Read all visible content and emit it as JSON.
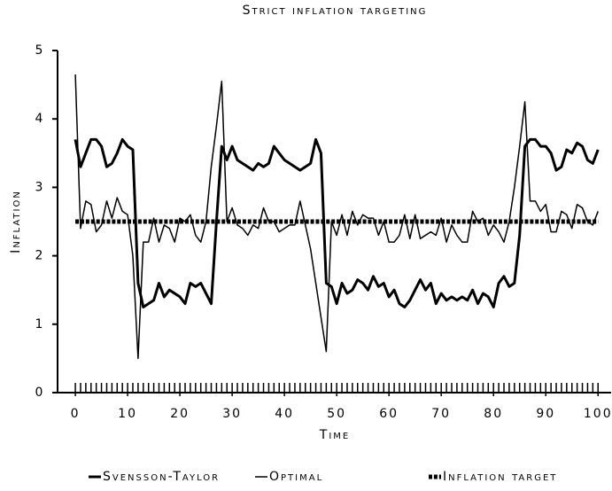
{
  "chart_data": {
    "type": "line",
    "title": "Strict inflation targeting",
    "x_label": "Time",
    "y_label": "Inflation",
    "x": [
      0,
      1,
      2,
      3,
      4,
      5,
      6,
      7,
      8,
      9,
      10,
      11,
      12,
      13,
      14,
      15,
      16,
      17,
      18,
      19,
      20,
      21,
      22,
      23,
      24,
      25,
      26,
      27,
      28,
      29,
      30,
      31,
      32,
      33,
      34,
      35,
      36,
      37,
      38,
      39,
      40,
      41,
      42,
      43,
      44,
      45,
      46,
      47,
      48,
      49,
      50,
      51,
      52,
      53,
      54,
      55,
      56,
      57,
      58,
      59,
      60,
      61,
      62,
      63,
      64,
      65,
      66,
      67,
      68,
      69,
      70,
      71,
      72,
      73,
      74,
      75,
      76,
      77,
      78,
      79,
      80,
      81,
      82,
      83,
      84,
      85,
      86,
      87,
      88,
      89,
      90,
      91,
      92,
      93,
      94,
      95,
      96,
      97,
      98,
      99,
      100
    ],
    "series": [
      {
        "name": "Svensson-Taylor",
        "color": "#000000",
        "style": "thick",
        "values": [
          3.7,
          3.3,
          3.5,
          3.7,
          3.7,
          3.6,
          3.3,
          3.35,
          3.5,
          3.7,
          3.6,
          3.55,
          1.6,
          1.25,
          1.3,
          1.35,
          1.6,
          1.4,
          1.5,
          1.45,
          1.4,
          1.3,
          1.6,
          1.55,
          1.6,
          1.45,
          1.3,
          2.5,
          3.6,
          3.4,
          3.6,
          3.4,
          3.35,
          3.3,
          3.25,
          3.35,
          3.3,
          3.35,
          3.6,
          3.5,
          3.4,
          3.35,
          3.3,
          3.25,
          3.3,
          3.35,
          3.7,
          3.5,
          1.6,
          1.55,
          1.3,
          1.6,
          1.45,
          1.5,
          1.65,
          1.6,
          1.5,
          1.7,
          1.55,
          1.6,
          1.4,
          1.5,
          1.3,
          1.25,
          1.35,
          1.5,
          1.65,
          1.5,
          1.6,
          1.3,
          1.45,
          1.35,
          1.4,
          1.35,
          1.4,
          1.35,
          1.5,
          1.3,
          1.45,
          1.4,
          1.25,
          1.6,
          1.7,
          1.55,
          1.6,
          2.3,
          3.6,
          3.7,
          3.7,
          3.6,
          3.6,
          3.5,
          3.25,
          3.3,
          3.55,
          3.5,
          3.65,
          3.6,
          3.4,
          3.35,
          3.55
        ]
      },
      {
        "name": "Optimal",
        "color": "#000000",
        "style": "thin",
        "values": [
          4.65,
          2.4,
          2.8,
          2.75,
          2.35,
          2.45,
          2.8,
          2.55,
          2.85,
          2.65,
          2.6,
          2.0,
          0.5,
          2.2,
          2.2,
          2.55,
          2.2,
          2.45,
          2.4,
          2.2,
          2.55,
          2.5,
          2.6,
          2.3,
          2.2,
          2.5,
          3.3,
          3.9,
          4.55,
          2.5,
          2.7,
          2.45,
          2.4,
          2.3,
          2.45,
          2.4,
          2.7,
          2.5,
          2.5,
          2.35,
          2.4,
          2.45,
          2.45,
          2.8,
          2.45,
          2.1,
          1.6,
          1.1,
          0.6,
          2.5,
          2.3,
          2.6,
          2.3,
          2.65,
          2.45,
          2.6,
          2.55,
          2.55,
          2.3,
          2.5,
          2.2,
          2.2,
          2.3,
          2.6,
          2.25,
          2.6,
          2.25,
          2.3,
          2.35,
          2.3,
          2.55,
          2.2,
          2.45,
          2.3,
          2.2,
          2.2,
          2.65,
          2.5,
          2.55,
          2.3,
          2.45,
          2.35,
          2.2,
          2.5,
          3.0,
          3.6,
          4.25,
          2.8,
          2.8,
          2.65,
          2.75,
          2.35,
          2.35,
          2.65,
          2.6,
          2.4,
          2.75,
          2.7,
          2.5,
          2.45,
          2.65
        ]
      },
      {
        "name": "Inflation target",
        "color": "#000000",
        "style": "dashed",
        "values": [
          2.5,
          2.5,
          2.5,
          2.5,
          2.5,
          2.5,
          2.5,
          2.5,
          2.5,
          2.5,
          2.5,
          2.5,
          2.5,
          2.5,
          2.5,
          2.5,
          2.5,
          2.5,
          2.5,
          2.5,
          2.5,
          2.5,
          2.5,
          2.5,
          2.5,
          2.5,
          2.5,
          2.5,
          2.5,
          2.5,
          2.5,
          2.5,
          2.5,
          2.5,
          2.5,
          2.5,
          2.5,
          2.5,
          2.5,
          2.5,
          2.5,
          2.5,
          2.5,
          2.5,
          2.5,
          2.5,
          2.5,
          2.5,
          2.5,
          2.5,
          2.5,
          2.5,
          2.5,
          2.5,
          2.5,
          2.5,
          2.5,
          2.5,
          2.5,
          2.5,
          2.5,
          2.5,
          2.5,
          2.5,
          2.5,
          2.5,
          2.5,
          2.5,
          2.5,
          2.5,
          2.5,
          2.5,
          2.5,
          2.5,
          2.5,
          2.5,
          2.5,
          2.5,
          2.5,
          2.5,
          2.5,
          2.5,
          2.5,
          2.5,
          2.5,
          2.5,
          2.5,
          2.5,
          2.5,
          2.5,
          2.5,
          2.5,
          2.5,
          2.5,
          2.5,
          2.5,
          2.5,
          2.5,
          2.5,
          2.5,
          2.5
        ]
      }
    ],
    "xlim": [
      -3.4,
      102.5
    ],
    "ylim": [
      0,
      5
    ],
    "xticks": [
      0,
      10,
      20,
      30,
      40,
      50,
      60,
      70,
      80,
      90,
      100
    ],
    "xminorticks": [
      0,
      1,
      2,
      3,
      4,
      5,
      6,
      7,
      8,
      9,
      10,
      11,
      12,
      13,
      14,
      15,
      16,
      17,
      18,
      19,
      20,
      21,
      22,
      23,
      24,
      25,
      26,
      27,
      28,
      29,
      30,
      31,
      32,
      33,
      34,
      35,
      36,
      37,
      38,
      39,
      40,
      41,
      42,
      43,
      44,
      45,
      46,
      47,
      48,
      49,
      50,
      51,
      52,
      53,
      54,
      55,
      56,
      57,
      58,
      59,
      60,
      61,
      62,
      63,
      64,
      65,
      66,
      67,
      68,
      69,
      70,
      71,
      72,
      73,
      74,
      75,
      76,
      77,
      78,
      79,
      80,
      81,
      82,
      83,
      84,
      85,
      86,
      87,
      88,
      89,
      90,
      91,
      92,
      93,
      94,
      95,
      96,
      97,
      98,
      99,
      100
    ],
    "yticks": [
      0,
      1,
      2,
      3,
      4,
      5
    ],
    "grid": false,
    "legend": "bottom"
  }
}
